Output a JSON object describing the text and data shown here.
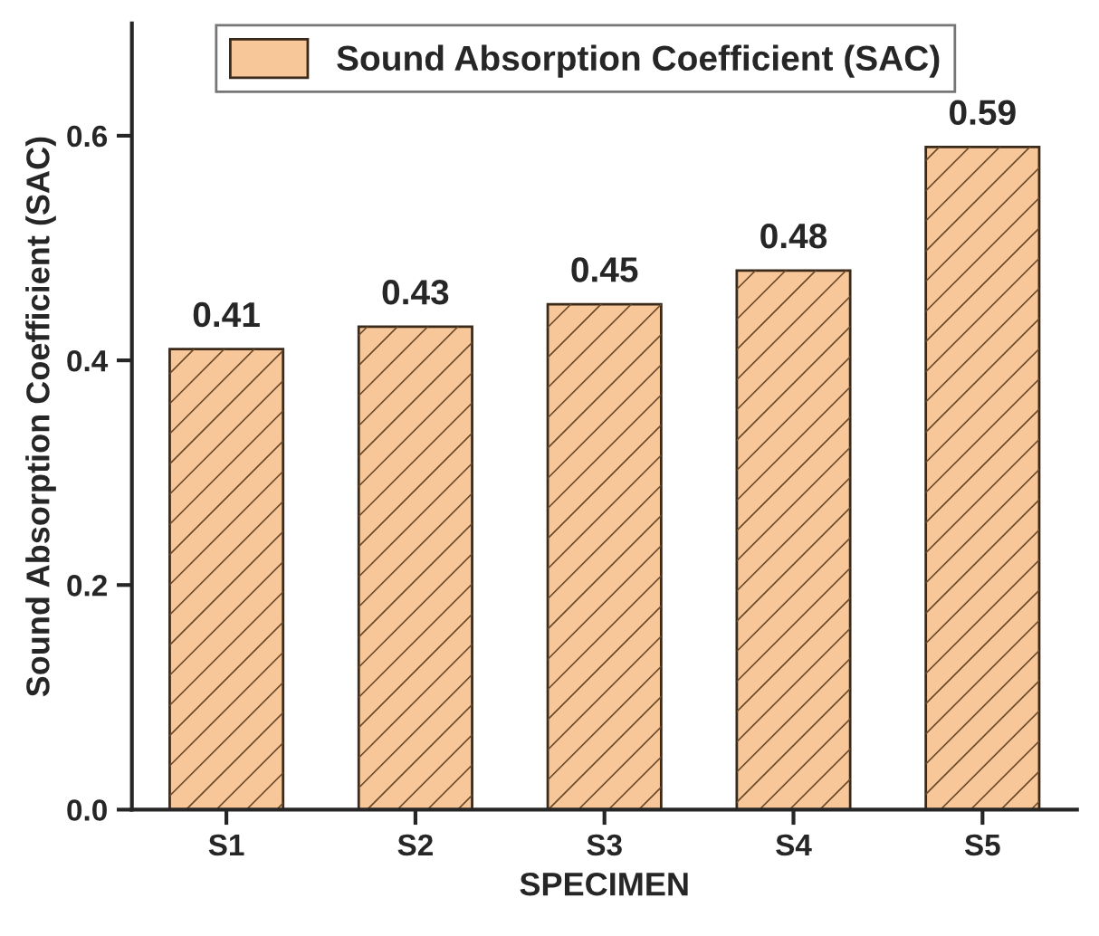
{
  "chart_data": {
    "type": "bar",
    "xlabel": "SPECIMEN",
    "ylabel": "Sound Absorption Coefficient (SAC)",
    "categories": [
      "S1",
      "S2",
      "S3",
      "S4",
      "S5"
    ],
    "series": [
      {
        "name": "Sound Absorption Coefficient (SAC)",
        "color": "#f8c799",
        "values": [
          0.41,
          0.43,
          0.45,
          0.48,
          0.59
        ]
      }
    ],
    "ylim": [
      0,
      0.7
    ],
    "yticks": [
      {
        "value": 0.0,
        "label": "0.0"
      },
      {
        "value": 0.2,
        "label": "0.2"
      },
      {
        "value": 0.4,
        "label": "0.4"
      },
      {
        "value": 0.6,
        "label": "0.6"
      }
    ],
    "data_labels": true,
    "legend": "top",
    "grid": false
  }
}
